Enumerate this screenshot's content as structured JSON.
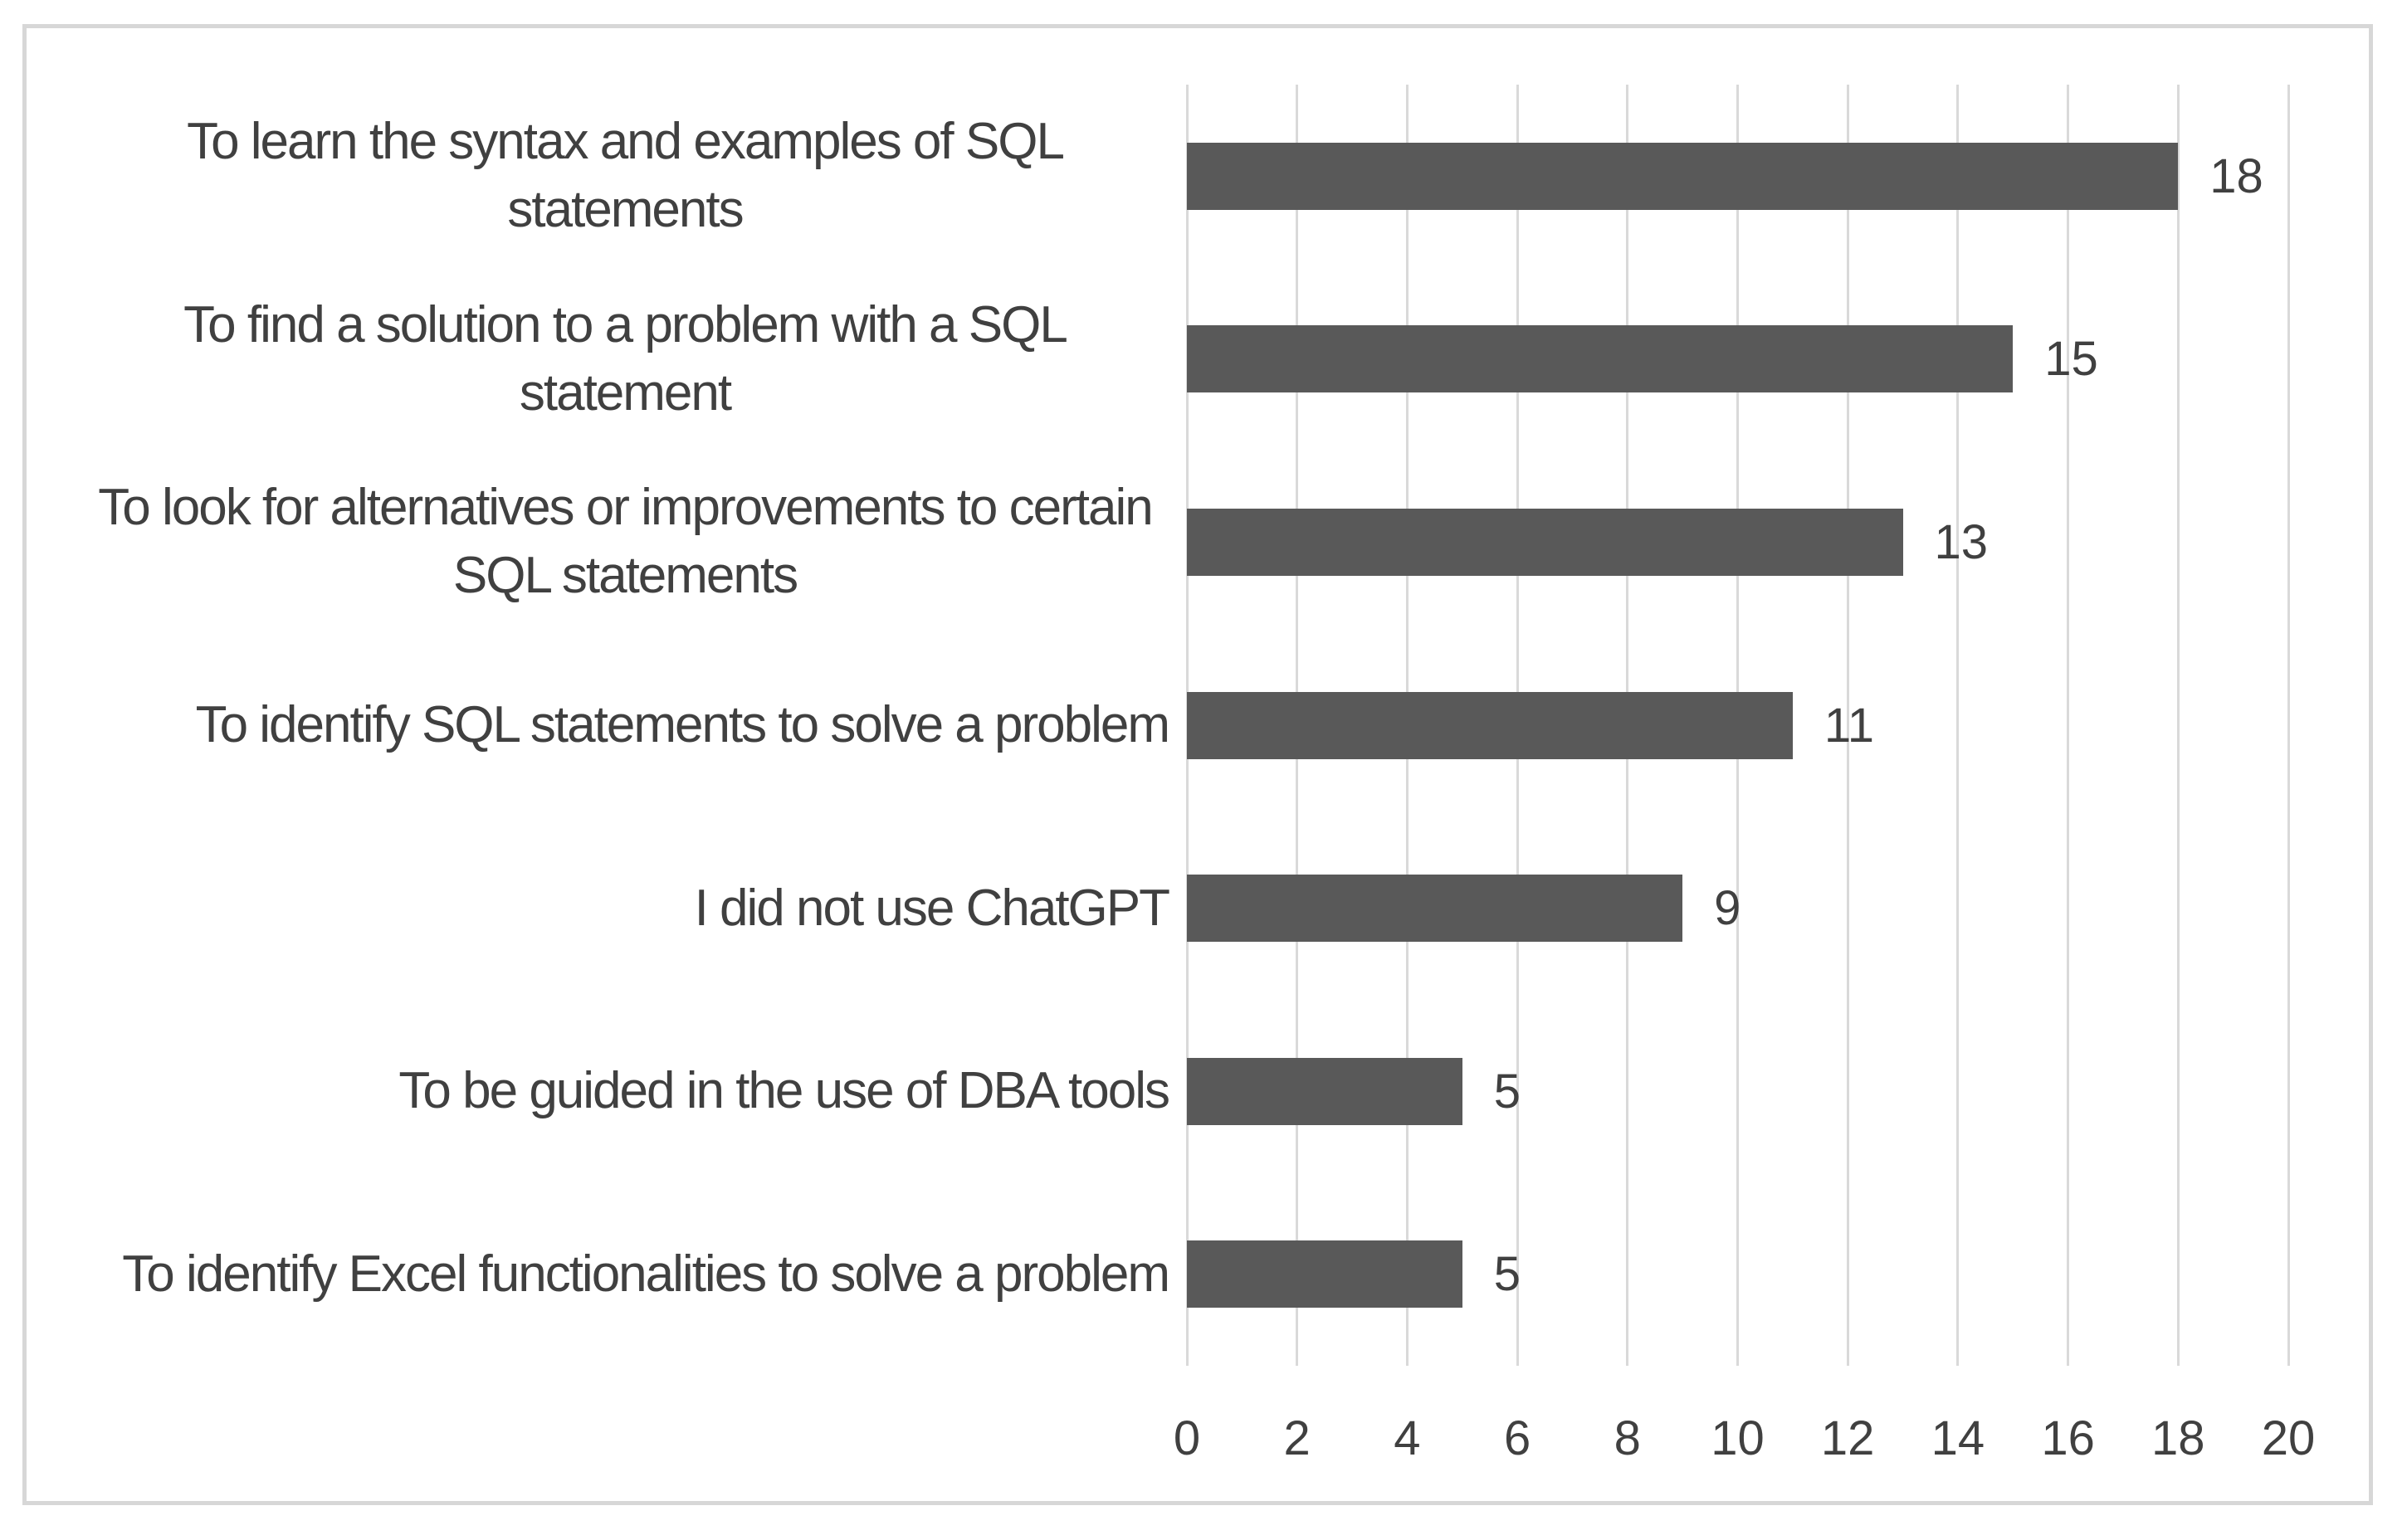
{
  "chart_data": {
    "type": "bar",
    "orientation": "horizontal",
    "title": "",
    "categories": [
      "To learn the syntax and examples of SQL statements",
      "To find a solution to a problem with a SQL statement",
      "To look for alternatives or improvements to certain SQL statements",
      "To identify SQL statements to solve a problem",
      "I did not use ChatGPT",
      "To be guided in the use of DBA tools",
      "To identify Excel functionalities to solve a problem"
    ],
    "values": [
      18,
      15,
      13,
      11,
      9,
      5,
      5
    ],
    "data_labels": [
      "18",
      "15",
      "13",
      "11",
      "9",
      "5",
      "5"
    ],
    "x_axis": {
      "min": 0,
      "max": 20,
      "tick_interval": 2,
      "tick_labels": [
        "0",
        "2",
        "4",
        "6",
        "8",
        "10",
        "12",
        "14",
        "16",
        "18",
        "20"
      ]
    },
    "grid": "vertical",
    "legend": "none",
    "colors": {
      "bar": "#595959",
      "gridline": "#D9D9D9",
      "text": "#404040",
      "frame_border": "#D7D7D7",
      "background": "#FFFFFF"
    }
  }
}
